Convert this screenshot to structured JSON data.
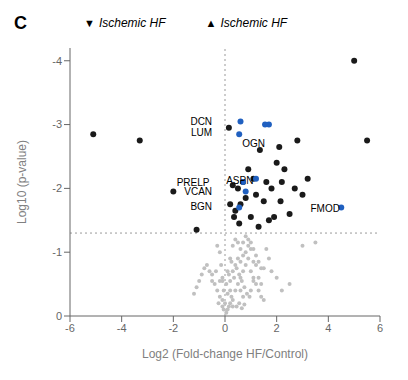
{
  "chart_data": {
    "type": "scatter",
    "title": "C",
    "x_label": "Log2 (Fold-change HF/Control)",
    "y_label": "Log10 (p-value)",
    "xlim": [
      -6,
      6
    ],
    "ylim": [
      0,
      -4.2
    ],
    "xticks": [
      -6,
      -4,
      -2,
      0,
      2,
      4,
      6
    ],
    "yticks": [
      0,
      -1,
      -2,
      -3,
      -4
    ],
    "grid": false,
    "header": [
      {
        "symbol": "▼",
        "text": "Ischemic HF"
      },
      {
        "symbol": "▲",
        "text": "Ischemic HF"
      }
    ],
    "reference_lines": [
      {
        "axis": "x",
        "value": 0
      },
      {
        "axis": "y",
        "value": -1.3
      }
    ],
    "series": [
      {
        "color": "#c0c0c0",
        "values": [
          [
            0.05,
            -0.05
          ],
          [
            0.1,
            -0.1
          ],
          [
            0.15,
            -0.15
          ],
          [
            0.2,
            -0.2
          ],
          [
            -0.05,
            -0.1
          ],
          [
            0.25,
            -0.3
          ],
          [
            0.3,
            -0.25
          ],
          [
            -0.1,
            -0.25
          ],
          [
            0.4,
            -0.4
          ],
          [
            0.5,
            -0.5
          ],
          [
            0.6,
            -0.6
          ],
          [
            0.7,
            -0.7
          ],
          [
            -0.2,
            -0.3
          ],
          [
            -0.3,
            -0.4
          ],
          [
            -0.4,
            -0.5
          ],
          [
            -0.5,
            -0.55
          ],
          [
            0.8,
            -0.8
          ],
          [
            0.9,
            -0.9
          ],
          [
            1.0,
            -0.7
          ],
          [
            1.1,
            -0.6
          ],
          [
            1.2,
            -0.5
          ],
          [
            1.3,
            -0.4
          ],
          [
            1.4,
            -0.3
          ],
          [
            1.5,
            -0.25
          ],
          [
            0.05,
            -0.5
          ],
          [
            0.1,
            -0.7
          ],
          [
            0.2,
            -0.9
          ],
          [
            0.3,
            -1.1
          ],
          [
            0.4,
            -1.2
          ],
          [
            0.5,
            -1.15
          ],
          [
            0.6,
            -0.85
          ],
          [
            0.7,
            -0.95
          ],
          [
            0.8,
            -1.0
          ],
          [
            0.9,
            -1.1
          ],
          [
            1.0,
            -1.05
          ],
          [
            1.1,
            -0.85
          ],
          [
            -0.1,
            -0.6
          ],
          [
            -0.15,
            -0.8
          ],
          [
            -0.2,
            -1.0
          ],
          [
            -0.3,
            -1.1
          ],
          [
            0.2,
            -0.4
          ],
          [
            0.35,
            -0.6
          ],
          [
            0.45,
            -0.75
          ],
          [
            0.55,
            -0.65
          ],
          [
            0.65,
            -0.55
          ],
          [
            0.75,
            -0.45
          ],
          [
            0.85,
            -0.35
          ],
          [
            0.95,
            -0.3
          ],
          [
            -0.05,
            -0.4
          ],
          [
            -0.1,
            -0.55
          ],
          [
            0.15,
            -0.65
          ],
          [
            0.25,
            -0.85
          ],
          [
            1.2,
            -0.8
          ],
          [
            1.3,
            -0.6
          ],
          [
            1.4,
            -0.5
          ],
          [
            1.5,
            -0.75
          ],
          [
            1.6,
            -1.05
          ],
          [
            1.7,
            -0.9
          ],
          [
            1.8,
            -0.7
          ],
          [
            2.0,
            -0.6
          ],
          [
            2.2,
            -0.4
          ],
          [
            2.5,
            -0.5
          ],
          [
            3.0,
            -1.1
          ],
          [
            3.5,
            -1.15
          ],
          [
            0.1,
            -0.35
          ],
          [
            0.2,
            -0.55
          ],
          [
            0.3,
            -0.7
          ],
          [
            0.4,
            -0.8
          ],
          [
            -0.2,
            -0.55
          ],
          [
            -0.35,
            -0.7
          ],
          [
            0.6,
            -0.4
          ],
          [
            0.7,
            -0.3
          ],
          [
            1.0,
            -0.4
          ],
          [
            1.1,
            -0.55
          ],
          [
            0.5,
            -0.9
          ],
          [
            0.6,
            -1.05
          ],
          [
            0.7,
            -1.15
          ],
          [
            0.8,
            -1.25
          ],
          [
            0.9,
            -1.2
          ],
          [
            1.0,
            -1.15
          ],
          [
            1.1,
            -1.05
          ],
          [
            1.2,
            -0.95
          ],
          [
            1.3,
            -0.85
          ],
          [
            1.4,
            -0.75
          ],
          [
            0.0,
            -0.2
          ],
          [
            -0.1,
            -0.15
          ],
          [
            0.3,
            -0.15
          ],
          [
            -0.25,
            -0.2
          ],
          [
            0.45,
            -0.15
          ],
          [
            0.55,
            -0.2
          ],
          [
            0.65,
            -0.12
          ],
          [
            0.75,
            -0.18
          ],
          [
            -0.5,
            -0.65
          ],
          [
            -0.6,
            -0.7
          ],
          [
            -0.7,
            -0.8
          ],
          [
            -0.8,
            -0.75
          ],
          [
            -0.9,
            -0.65
          ],
          [
            -1.0,
            -0.55
          ],
          [
            -1.1,
            -0.45
          ],
          [
            -1.2,
            -0.35
          ]
        ]
      },
      {
        "color": "#1a1a1a",
        "values": [
          [
            -5.1,
            -2.85
          ],
          [
            -3.3,
            -2.75
          ],
          [
            -2.0,
            -1.95
          ],
          [
            -1.1,
            -1.35
          ],
          [
            0.15,
            -2.95
          ],
          [
            0.2,
            -1.75
          ],
          [
            0.3,
            -2.05
          ],
          [
            0.35,
            -1.55
          ],
          [
            0.4,
            -1.65
          ],
          [
            0.5,
            -2.0
          ],
          [
            0.55,
            -1.45
          ],
          [
            0.6,
            -1.75
          ],
          [
            0.7,
            -2.1
          ],
          [
            0.8,
            -1.85
          ],
          [
            0.9,
            -2.3
          ],
          [
            1.0,
            -1.55
          ],
          [
            1.1,
            -2.15
          ],
          [
            1.2,
            -1.9
          ],
          [
            1.3,
            -1.4
          ],
          [
            1.35,
            -2.6
          ],
          [
            1.5,
            -1.8
          ],
          [
            1.6,
            -2.1
          ],
          [
            1.7,
            -1.5
          ],
          [
            1.8,
            -2.0
          ],
          [
            1.9,
            -1.55
          ],
          [
            2.0,
            -2.4
          ],
          [
            2.1,
            -2.65
          ],
          [
            2.15,
            -1.8
          ],
          [
            2.2,
            -2.1
          ],
          [
            2.3,
            -2.3
          ],
          [
            2.5,
            -1.6
          ],
          [
            2.7,
            -2.0
          ],
          [
            2.8,
            -2.75
          ],
          [
            3.0,
            -1.9
          ],
          [
            3.2,
            -2.15
          ],
          [
            5.5,
            -2.75
          ],
          [
            5.0,
            -4.0
          ]
        ]
      },
      {
        "color": "#2060c0",
        "values": [
          [
            0.55,
            -2.85
          ],
          [
            0.6,
            -3.05
          ],
          [
            1.7,
            -3.0
          ],
          [
            0.7,
            -2.1
          ],
          [
            0.8,
            -1.95
          ],
          [
            1.2,
            -2.15
          ],
          [
            0.55,
            -1.7
          ],
          [
            4.5,
            -1.7
          ],
          [
            1.55,
            -3.0
          ]
        ]
      }
    ],
    "annotations": [
      {
        "text": "LUM",
        "x": 0.55,
        "y": -2.85,
        "text_x": -0.5,
        "text_y": -2.87
      },
      {
        "text": "DCN",
        "x": 0.6,
        "y": -3.05,
        "text_x": -0.5,
        "text_y": -3.05
      },
      {
        "text": "OGN",
        "x": 1.7,
        "y": -3.0,
        "text_x": 1.55,
        "text_y": -2.7
      },
      {
        "text": "PRELP",
        "x": 0.7,
        "y": -2.1,
        "text_x": -0.6,
        "text_y": -2.1
      },
      {
        "text": "VCAN",
        "x": 0.8,
        "y": -1.95,
        "text_x": -0.5,
        "text_y": -1.95
      },
      {
        "text": "ASPN",
        "x": 1.2,
        "y": -2.15,
        "text_x": 1.1,
        "text_y": -2.12
      },
      {
        "text": "BGN",
        "x": 0.55,
        "y": -1.7,
        "text_x": -0.5,
        "text_y": -1.72
      },
      {
        "text": "FMOD",
        "x": 4.5,
        "y": -1.7,
        "text_x": 4.45,
        "text_y": -1.68
      }
    ]
  }
}
